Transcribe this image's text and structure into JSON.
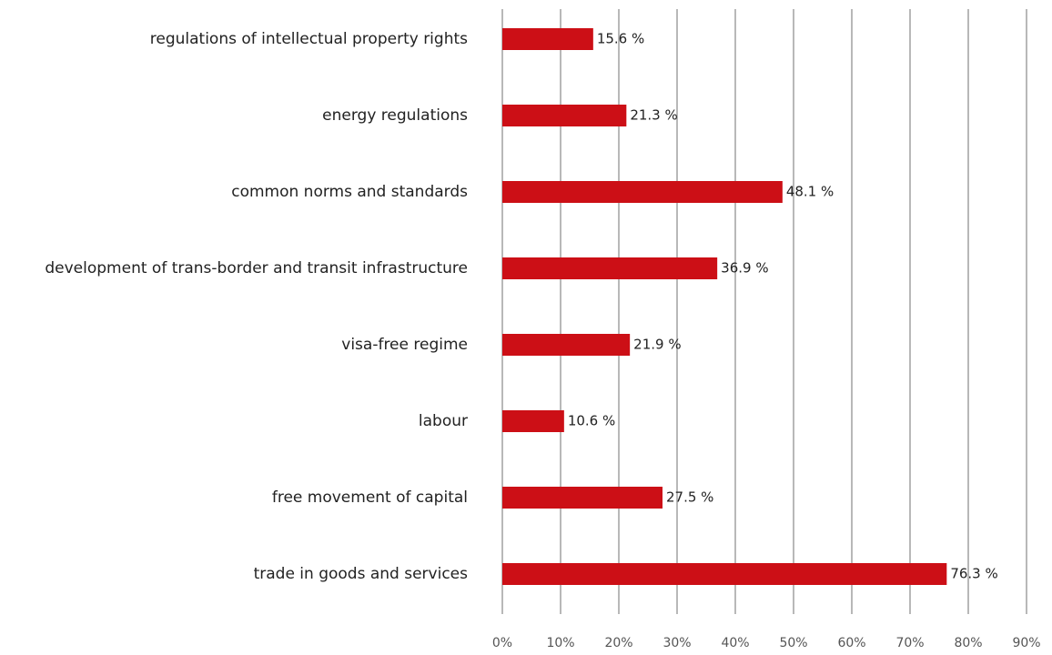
{
  "chart_data": {
    "type": "bar",
    "orientation": "horizontal",
    "categories": [
      "regulations of intellectual property rights",
      "energy regulations",
      "common norms and standards",
      "development of trans-border and transit infrastructure",
      "visa-free regime",
      "labour",
      "free movement of capital",
      "trade in goods and services"
    ],
    "values": [
      15.6,
      21.3,
      48.1,
      36.9,
      21.9,
      10.6,
      27.5,
      76.3
    ],
    "value_labels": [
      "15.6 %",
      "21.3 %",
      "48.1 %",
      "36.9 %",
      "21.9 %",
      "10.6 %",
      "27.5 %",
      "76.3 %"
    ],
    "color": "#cc0f16",
    "xlim": [
      0,
      90
    ],
    "xticks": [
      {
        "value": 0,
        "label": "0%"
      },
      {
        "value": 10,
        "label": "10%"
      },
      {
        "value": 20,
        "label": "20%"
      },
      {
        "value": 30,
        "label": "30%"
      },
      {
        "value": 40,
        "label": "40%"
      },
      {
        "value": 50,
        "label": "50%"
      },
      {
        "value": 60,
        "label": "60%"
      },
      {
        "value": 70,
        "label": "70%"
      },
      {
        "value": 80,
        "label": "80%"
      },
      {
        "value": 90,
        "label": "90%"
      }
    ],
    "grid": true
  }
}
